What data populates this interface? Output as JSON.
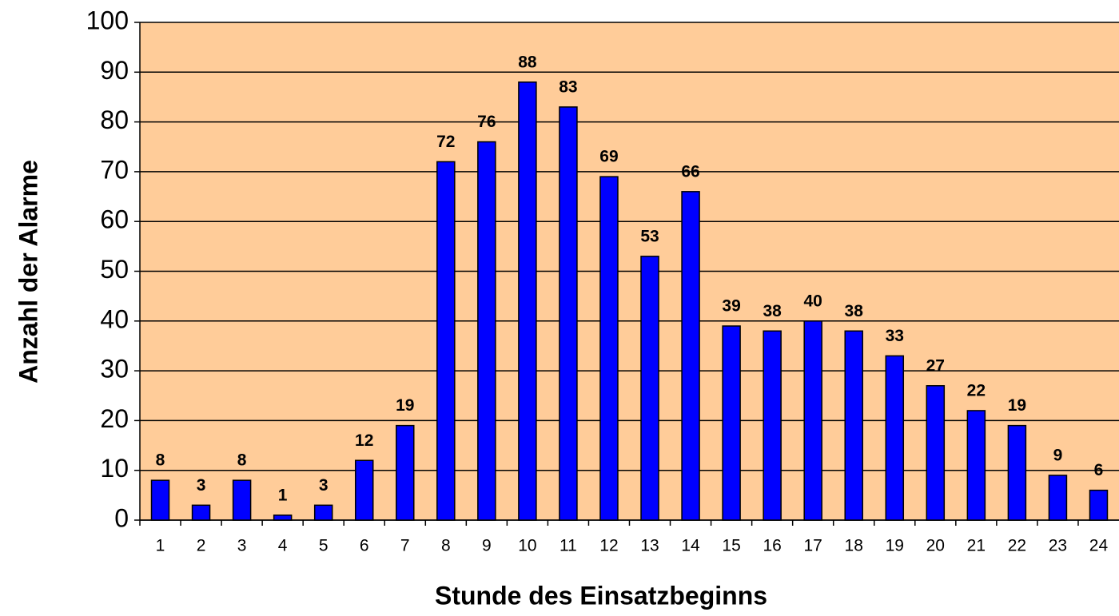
{
  "chart_data": {
    "type": "bar",
    "x_label": "Stunde des Einsatzbeginns",
    "y_label": "Anzahl der Alarme",
    "categories": [
      "1",
      "2",
      "3",
      "4",
      "5",
      "6",
      "7",
      "8",
      "9",
      "10",
      "11",
      "12",
      "13",
      "14",
      "15",
      "16",
      "17",
      "18",
      "19",
      "20",
      "21",
      "22",
      "23",
      "24"
    ],
    "values": [
      8,
      3,
      8,
      1,
      3,
      12,
      19,
      72,
      76,
      88,
      83,
      69,
      53,
      66,
      39,
      38,
      40,
      38,
      33,
      27,
      22,
      19,
      9,
      6
    ],
    "color": "#0000ff",
    "background": "#ffcc99",
    "ylim": [
      0,
      100
    ],
    "yticks": [
      0,
      10,
      20,
      30,
      40,
      50,
      60,
      70,
      80,
      90,
      100
    ],
    "grid": true
  }
}
